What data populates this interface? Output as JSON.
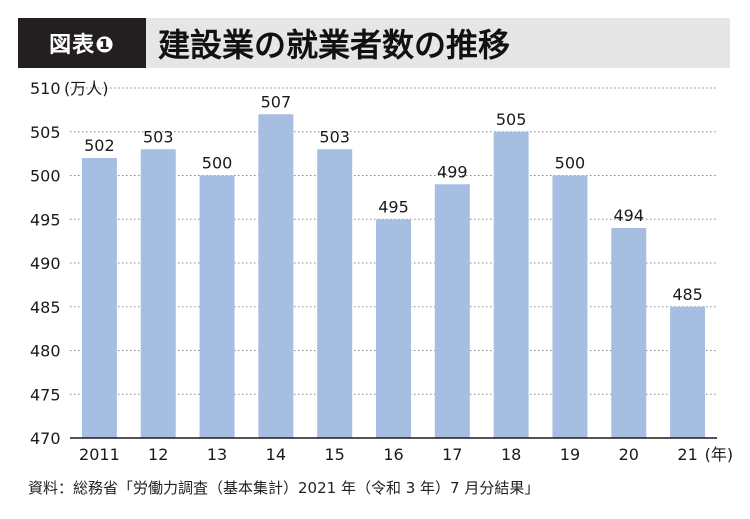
{
  "header": {
    "badge": "図表❶",
    "title": "建設業の就業者数の推移"
  },
  "chart_data": {
    "type": "bar",
    "title": "建設業の就業者数の推移",
    "ylabel": "(万人)",
    "xlabel": "(年)",
    "categories": [
      "2011",
      "12",
      "13",
      "14",
      "15",
      "16",
      "17",
      "18",
      "19",
      "20",
      "21"
    ],
    "values": [
      502,
      503,
      500,
      507,
      503,
      495,
      499,
      505,
      500,
      494,
      485
    ],
    "data_labels": [
      "502",
      "503",
      "500",
      "507",
      "503",
      "495",
      "499",
      "505",
      "500",
      "494",
      "485"
    ],
    "ylim": [
      470,
      510
    ],
    "yticks": [
      470,
      475,
      480,
      485,
      490,
      495,
      500,
      505,
      510
    ],
    "bar_color": "#a7bee3",
    "grid": "dotted horizontal"
  },
  "footer": {
    "source": "資料：総務省「労働力調査（基本集計）2021 年（令和 3 年）7 月分結果」"
  }
}
